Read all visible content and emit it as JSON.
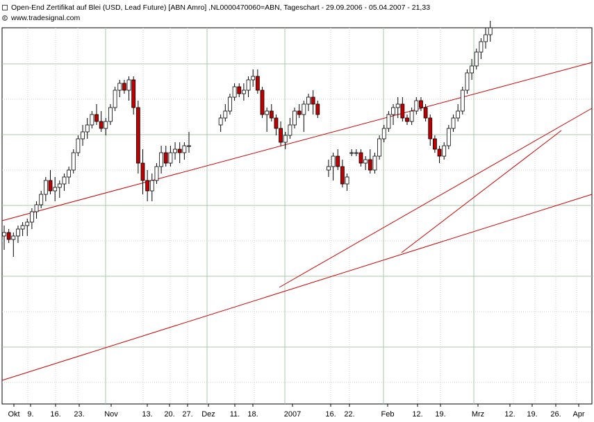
{
  "header": {
    "title": "Open-End Zertifikat auf Blei (USD, Lead Future) [ABN Amro] ,NL0000470060=ABN, Tageschart - 29.09.2006 - 05.04.2007 - 21,33",
    "source": "www.tradesignal.com"
  },
  "colors": {
    "up_fill": "#ffffff",
    "down_fill": "#c00000",
    "candle_outline": "#000000",
    "trendline": "#cc0000",
    "grid_major": "#a8c8a8",
    "grid_minor": "#cfcfcf"
  },
  "chart_data": {
    "type": "candlestick",
    "grid": true,
    "x_tick_labels": [
      "Okt",
      "9.",
      "16.",
      "23.",
      "Nov",
      "13.",
      "20.",
      "27.",
      "Dez",
      "11.",
      "18.",
      "2007",
      "16.",
      "22.",
      "Feb",
      "12.",
      "19.",
      "Mrz",
      "12.",
      "19.",
      "26.",
      "Apr"
    ],
    "series": [
      {
        "values": [
          {
            "o": 0.46,
            "h": 0.49,
            "l": 0.42,
            "c": 0.47
          },
          {
            "o": 0.47,
            "h": 0.48,
            "l": 0.44,
            "c": 0.45
          },
          {
            "o": 0.45,
            "h": 0.47,
            "l": 0.4,
            "c": 0.46
          },
          {
            "o": 0.46,
            "h": 0.49,
            "l": 0.44,
            "c": 0.48
          },
          {
            "o": 0.48,
            "h": 0.5,
            "l": 0.46,
            "c": 0.49
          },
          {
            "o": 0.49,
            "h": 0.51,
            "l": 0.46,
            "c": 0.5
          },
          {
            "o": 0.5,
            "h": 0.54,
            "l": 0.48,
            "c": 0.53
          },
          {
            "o": 0.53,
            "h": 0.56,
            "l": 0.51,
            "c": 0.55
          },
          {
            "o": 0.55,
            "h": 0.59,
            "l": 0.54,
            "c": 0.58
          },
          {
            "o": 0.58,
            "h": 0.63,
            "l": 0.56,
            "c": 0.62
          },
          {
            "o": 0.62,
            "h": 0.65,
            "l": 0.58,
            "c": 0.59
          },
          {
            "o": 0.59,
            "h": 0.63,
            "l": 0.56,
            "c": 0.6
          },
          {
            "o": 0.6,
            "h": 0.62,
            "l": 0.57,
            "c": 0.61
          },
          {
            "o": 0.61,
            "h": 0.64,
            "l": 0.59,
            "c": 0.63
          },
          {
            "o": 0.63,
            "h": 0.66,
            "l": 0.61,
            "c": 0.65
          },
          {
            "o": 0.65,
            "h": 0.71,
            "l": 0.64,
            "c": 0.7
          },
          {
            "o": 0.7,
            "h": 0.75,
            "l": 0.69,
            "c": 0.74
          },
          {
            "o": 0.74,
            "h": 0.78,
            "l": 0.72,
            "c": 0.76
          },
          {
            "o": 0.76,
            "h": 0.8,
            "l": 0.74,
            "c": 0.78
          },
          {
            "o": 0.78,
            "h": 0.82,
            "l": 0.77,
            "c": 0.81
          },
          {
            "o": 0.81,
            "h": 0.84,
            "l": 0.78,
            "c": 0.79
          },
          {
            "o": 0.79,
            "h": 0.82,
            "l": 0.76,
            "c": 0.77
          },
          {
            "o": 0.77,
            "h": 0.8,
            "l": 0.75,
            "c": 0.79
          },
          {
            "o": 0.79,
            "h": 0.84,
            "l": 0.78,
            "c": 0.83
          },
          {
            "o": 0.83,
            "h": 0.89,
            "l": 0.82,
            "c": 0.88
          },
          {
            "o": 0.88,
            "h": 0.91,
            "l": 0.86,
            "c": 0.9
          },
          {
            "o": 0.9,
            "h": 0.91,
            "l": 0.87,
            "c": 0.88
          },
          {
            "o": 0.88,
            "h": 0.92,
            "l": 0.85,
            "c": 0.91
          },
          {
            "o": 0.91,
            "h": 0.92,
            "l": 0.81,
            "c": 0.83
          },
          {
            "o": 0.83,
            "h": 0.85,
            "l": 0.64,
            "c": 0.67
          },
          {
            "o": 0.67,
            "h": 0.71,
            "l": 0.58,
            "c": 0.62
          },
          {
            "o": 0.62,
            "h": 0.65,
            "l": 0.56,
            "c": 0.59
          },
          {
            "o": 0.59,
            "h": 0.64,
            "l": 0.56,
            "c": 0.62
          },
          {
            "o": 0.62,
            "h": 0.67,
            "l": 0.61,
            "c": 0.66
          },
          {
            "o": 0.66,
            "h": 0.72,
            "l": 0.64,
            "c": 0.7
          },
          {
            "o": 0.7,
            "h": 0.72,
            "l": 0.66,
            "c": 0.67
          },
          {
            "o": 0.67,
            "h": 0.72,
            "l": 0.66,
            "c": 0.7
          },
          {
            "o": 0.7,
            "h": 0.73,
            "l": 0.68,
            "c": 0.71
          },
          {
            "o": 0.71,
            "h": 0.73,
            "l": 0.67,
            "c": 0.7
          },
          {
            "o": 0.7,
            "h": 0.73,
            "l": 0.68,
            "c": 0.72
          },
          {
            "o": 0.72,
            "h": 0.76,
            "l": 0.7,
            "c": 0.72
          },
          {
            "o": 0.78,
            "h": 0.81,
            "l": 0.76,
            "c": 0.8
          },
          {
            "o": 0.8,
            "h": 0.84,
            "l": 0.79,
            "c": 0.82
          },
          {
            "o": 0.82,
            "h": 0.87,
            "l": 0.81,
            "c": 0.86
          },
          {
            "o": 0.86,
            "h": 0.9,
            "l": 0.85,
            "c": 0.89
          },
          {
            "o": 0.89,
            "h": 0.9,
            "l": 0.86,
            "c": 0.87
          },
          {
            "o": 0.87,
            "h": 0.9,
            "l": 0.85,
            "c": 0.88
          },
          {
            "o": 0.88,
            "h": 0.92,
            "l": 0.86,
            "c": 0.91
          },
          {
            "o": 0.91,
            "h": 0.94,
            "l": 0.89,
            "c": 0.92
          },
          {
            "o": 0.92,
            "h": 0.94,
            "l": 0.87,
            "c": 0.88
          },
          {
            "o": 0.88,
            "h": 0.89,
            "l": 0.8,
            "c": 0.81
          },
          {
            "o": 0.81,
            "h": 0.83,
            "l": 0.76,
            "c": 0.82
          },
          {
            "o": 0.82,
            "h": 0.84,
            "l": 0.79,
            "c": 0.8
          },
          {
            "o": 0.8,
            "h": 0.81,
            "l": 0.75,
            "c": 0.77
          },
          {
            "o": 0.77,
            "h": 0.79,
            "l": 0.72,
            "c": 0.73
          },
          {
            "o": 0.73,
            "h": 0.76,
            "l": 0.71,
            "c": 0.75
          },
          {
            "o": 0.75,
            "h": 0.8,
            "l": 0.74,
            "c": 0.78
          },
          {
            "o": 0.78,
            "h": 0.83,
            "l": 0.77,
            "c": 0.82
          },
          {
            "o": 0.82,
            "h": 0.84,
            "l": 0.8,
            "c": 0.81
          },
          {
            "o": 0.81,
            "h": 0.85,
            "l": 0.76,
            "c": 0.84
          },
          {
            "o": 0.84,
            "h": 0.87,
            "l": 0.82,
            "c": 0.86
          },
          {
            "o": 0.86,
            "h": 0.88,
            "l": 0.81,
            "c": 0.84
          },
          {
            "o": 0.84,
            "h": 0.85,
            "l": 0.8,
            "c": 0.81
          },
          {
            "o": 0.65,
            "h": 0.68,
            "l": 0.63,
            "c": 0.66
          },
          {
            "o": 0.66,
            "h": 0.7,
            "l": 0.62,
            "c": 0.69
          },
          {
            "o": 0.69,
            "h": 0.71,
            "l": 0.65,
            "c": 0.66
          },
          {
            "o": 0.66,
            "h": 0.68,
            "l": 0.6,
            "c": 0.61
          },
          {
            "o": 0.61,
            "h": 0.64,
            "l": 0.59,
            "c": 0.63
          },
          {
            "o": 0.7,
            "h": 0.71,
            "l": 0.69,
            "c": 0.7
          },
          {
            "o": 0.7,
            "h": 0.71,
            "l": 0.69,
            "c": 0.7
          },
          {
            "o": 0.7,
            "h": 0.71,
            "l": 0.66,
            "c": 0.67
          },
          {
            "o": 0.67,
            "h": 0.69,
            "l": 0.65,
            "c": 0.68
          },
          {
            "o": 0.68,
            "h": 0.71,
            "l": 0.64,
            "c": 0.65
          },
          {
            "o": 0.65,
            "h": 0.7,
            "l": 0.64,
            "c": 0.69
          },
          {
            "o": 0.69,
            "h": 0.75,
            "l": 0.68,
            "c": 0.74
          },
          {
            "o": 0.74,
            "h": 0.78,
            "l": 0.73,
            "c": 0.77
          },
          {
            "o": 0.77,
            "h": 0.82,
            "l": 0.76,
            "c": 0.81
          },
          {
            "o": 0.81,
            "h": 0.84,
            "l": 0.78,
            "c": 0.83
          },
          {
            "o": 0.83,
            "h": 0.86,
            "l": 0.8,
            "c": 0.84
          },
          {
            "o": 0.84,
            "h": 0.86,
            "l": 0.79,
            "c": 0.8
          },
          {
            "o": 0.8,
            "h": 0.81,
            "l": 0.78,
            "c": 0.79
          },
          {
            "o": 0.79,
            "h": 0.83,
            "l": 0.78,
            "c": 0.82
          },
          {
            "o": 0.82,
            "h": 0.86,
            "l": 0.81,
            "c": 0.85
          },
          {
            "o": 0.85,
            "h": 0.86,
            "l": 0.82,
            "c": 0.83
          },
          {
            "o": 0.83,
            "h": 0.84,
            "l": 0.79,
            "c": 0.8
          },
          {
            "o": 0.8,
            "h": 0.81,
            "l": 0.72,
            "c": 0.74
          },
          {
            "o": 0.74,
            "h": 0.75,
            "l": 0.7,
            "c": 0.71
          },
          {
            "o": 0.71,
            "h": 0.72,
            "l": 0.67,
            "c": 0.69
          },
          {
            "o": 0.69,
            "h": 0.73,
            "l": 0.68,
            "c": 0.72
          },
          {
            "o": 0.72,
            "h": 0.78,
            "l": 0.71,
            "c": 0.77
          },
          {
            "o": 0.77,
            "h": 0.81,
            "l": 0.76,
            "c": 0.8
          },
          {
            "o": 0.8,
            "h": 0.84,
            "l": 0.79,
            "c": 0.82
          },
          {
            "o": 0.82,
            "h": 0.89,
            "l": 0.81,
            "c": 0.88
          },
          {
            "o": 0.88,
            "h": 0.94,
            "l": 0.87,
            "c": 0.93
          },
          {
            "o": 0.93,
            "h": 0.97,
            "l": 0.91,
            "c": 0.95
          },
          {
            "o": 0.95,
            "h": 1.0,
            "l": 0.94,
            "c": 0.99
          },
          {
            "o": 0.99,
            "h": 1.03,
            "l": 0.97,
            "c": 1.02
          },
          {
            "o": 1.02,
            "h": 1.06,
            "l": 1.0,
            "c": 1.04
          },
          {
            "o": 1.04,
            "h": 1.08,
            "l": 1.02,
            "c": 1.06
          }
        ]
      }
    ]
  }
}
